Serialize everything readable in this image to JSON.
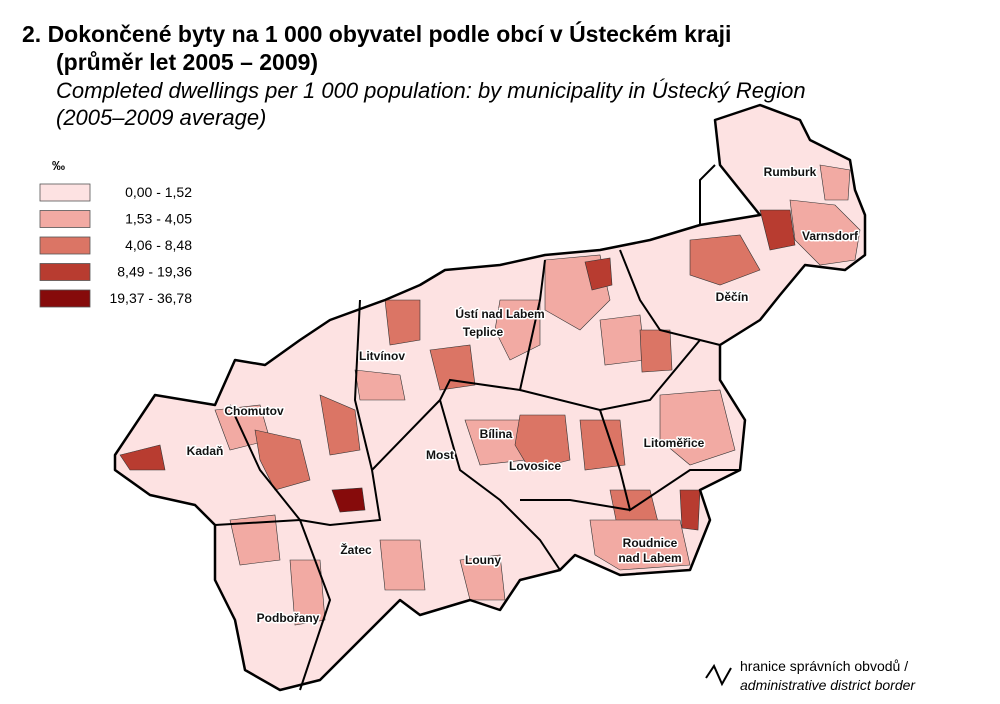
{
  "title": {
    "line1": "2. Dokončené byty na 1 000 obyvatel podle obcí v Ústeckém kraji",
    "line2": "(průměr let 2005 – 2009)",
    "line1_en": "Completed dwellings per 1 000 population: by municipality in Ústecký Region",
    "line2_en": "(2005–2009 average)"
  },
  "legend": {
    "unit": "‰",
    "classes": [
      {
        "label": "0,00 -   1,52",
        "color": "#fde2e2"
      },
      {
        "label": "1,53 -   4,05",
        "color": "#f2aaa3"
      },
      {
        "label": "4,06 -   8,48",
        "color": "#db7565"
      },
      {
        "label": "8,49 - 19,36",
        "color": "#b83c30"
      },
      {
        "label": "19,37 - 36,78",
        "color": "#860b0b"
      }
    ]
  },
  "places": [
    [
      "Rumburk"
    ],
    [
      "Varnsdorf"
    ],
    [
      "Děčín"
    ],
    [
      "Ústí nad Labem"
    ],
    [
      "Teplice"
    ],
    [
      "Litvínov"
    ],
    [
      "Chomutov"
    ],
    [
      "Kadaň"
    ],
    [
      "Most"
    ],
    [
      "Bílina"
    ],
    [
      "Lovosice"
    ],
    [
      "Litoměřice"
    ],
    [
      "Roudnice",
      "nad Labem"
    ],
    [
      "Žatec"
    ],
    [
      "Louny"
    ],
    [
      "Podbořany"
    ]
  ],
  "border_legend": {
    "line1": "hranice správních obvodů /",
    "line2": "administrative district border"
  }
}
